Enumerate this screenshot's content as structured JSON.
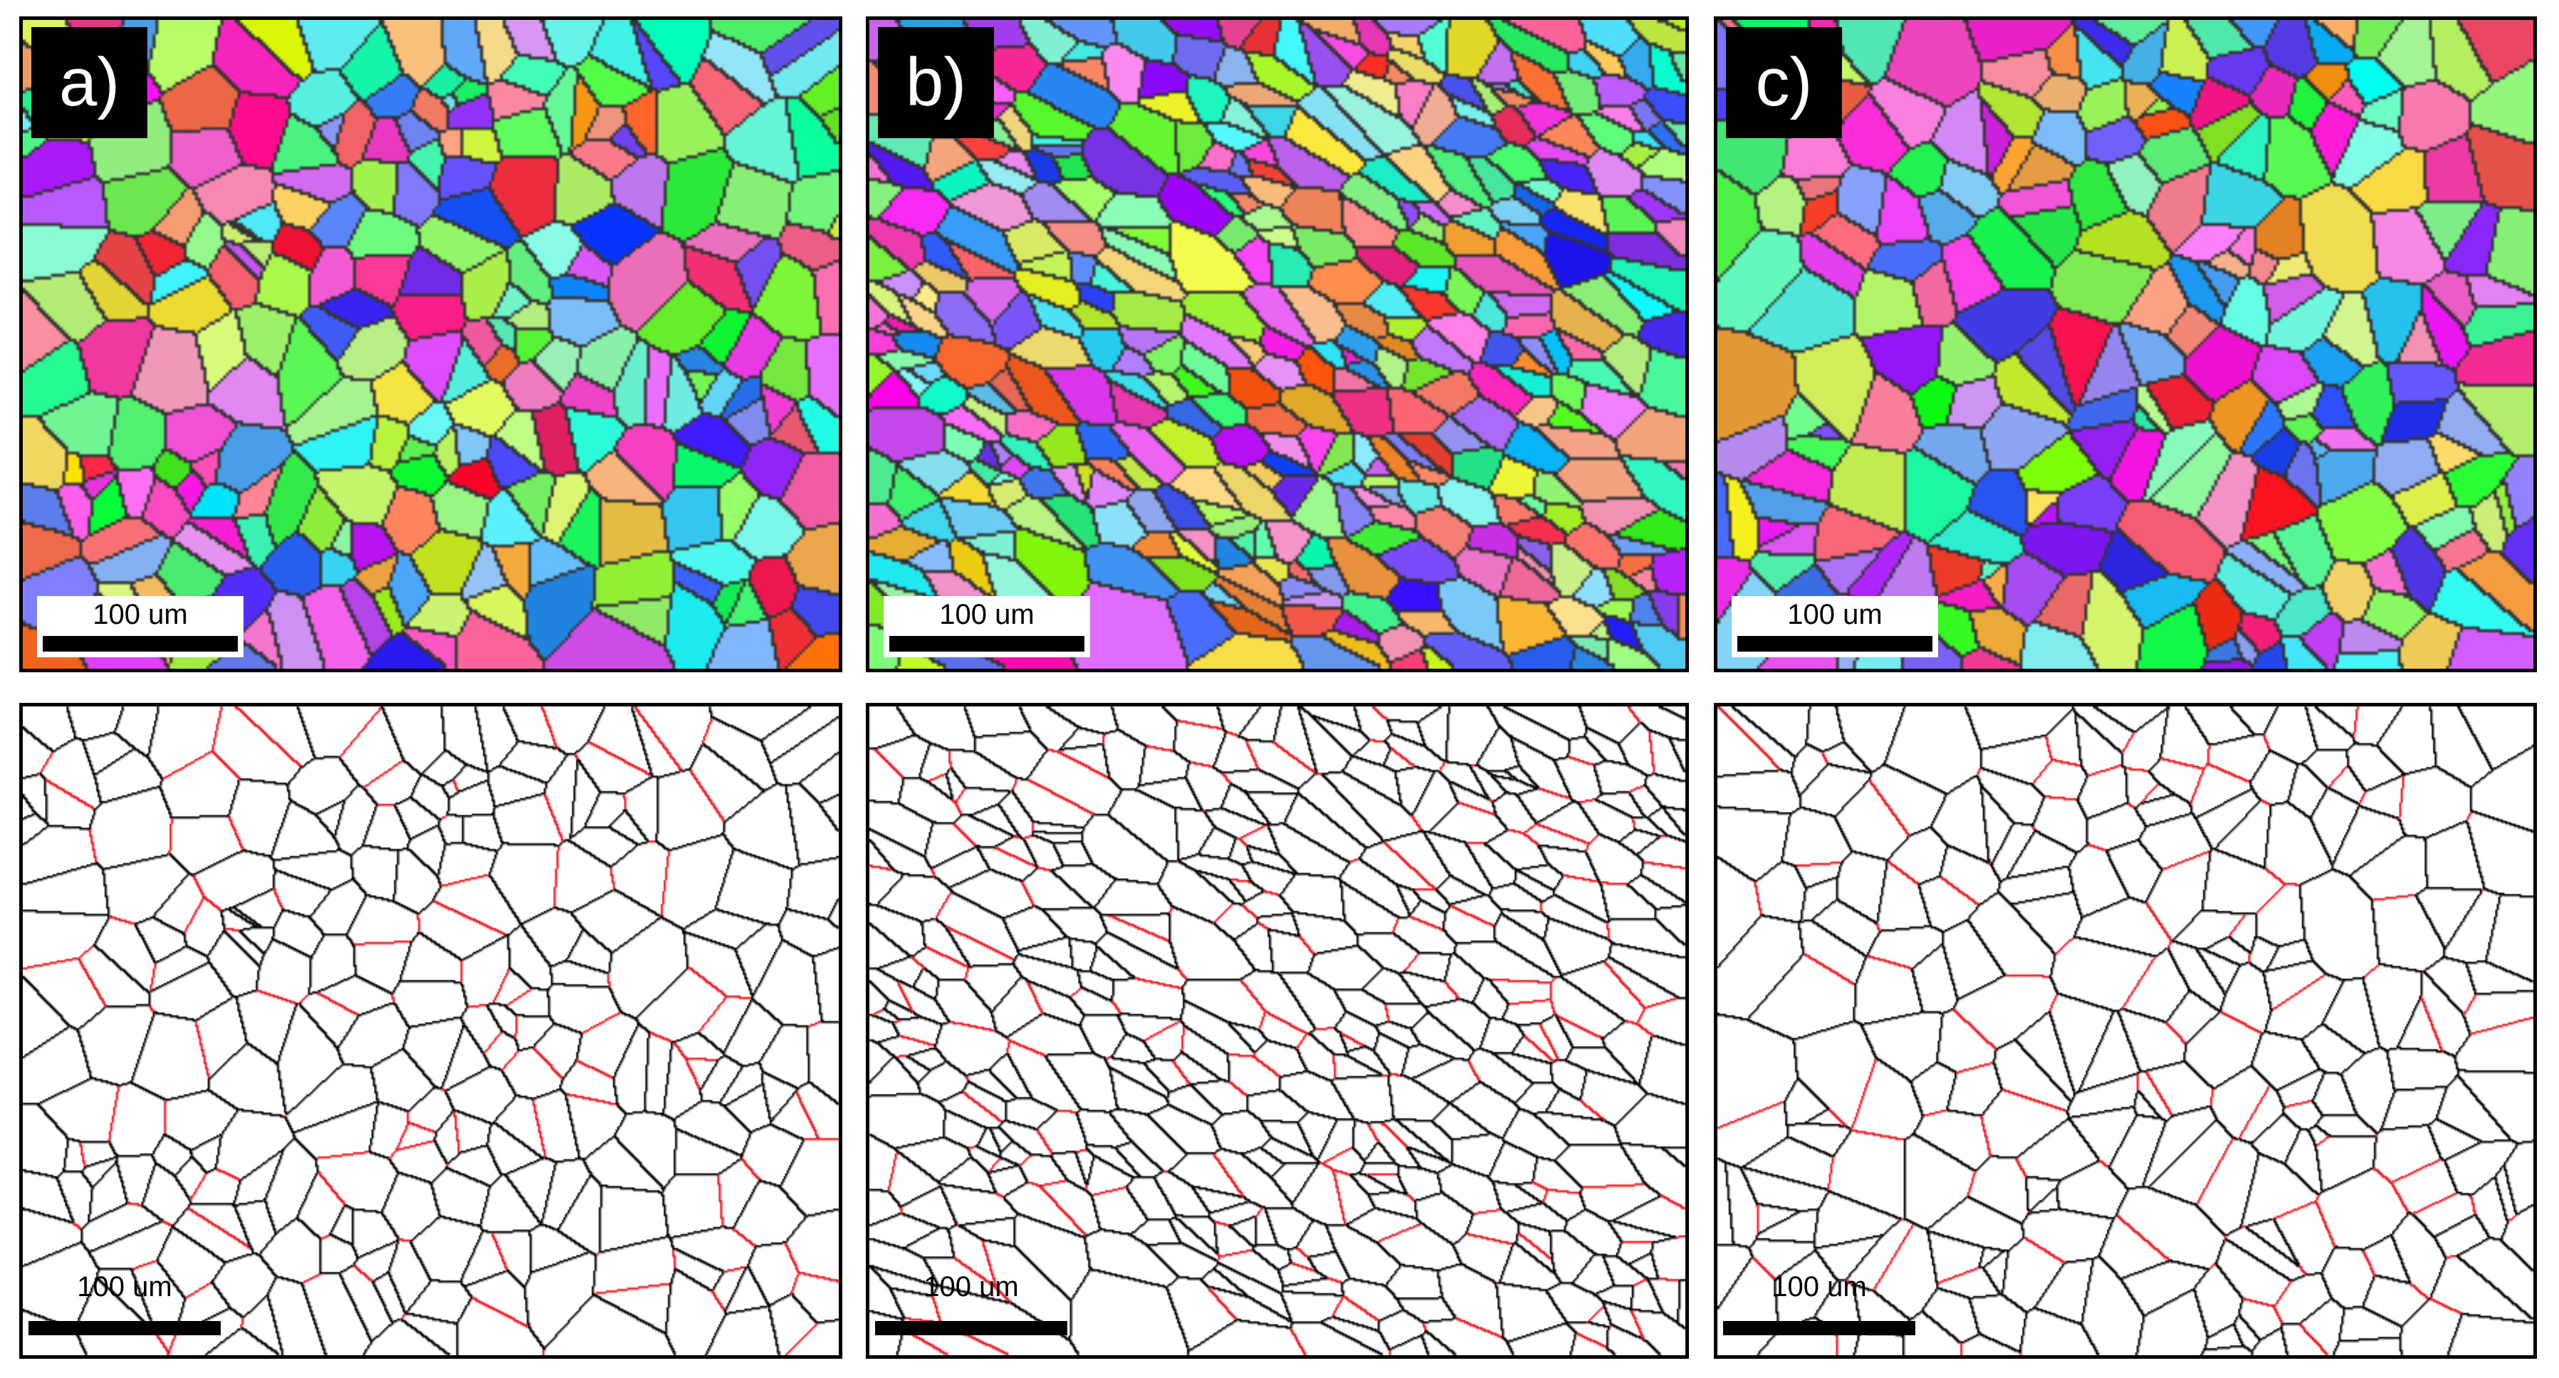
{
  "panels": [
    {
      "label": "a)",
      "scale_bar": "100 um",
      "bottom_scale_bar": "100 um"
    },
    {
      "label": "b)",
      "scale_bar": "100 um",
      "bottom_scale_bar": "100 um"
    },
    {
      "label": "c)",
      "scale_bar": "100 um",
      "bottom_scale_bar": "100 um"
    }
  ],
  "colors": {
    "grain_boundary": "#000000",
    "twin_boundary": "#e8141c",
    "background": "#ffffff"
  }
}
